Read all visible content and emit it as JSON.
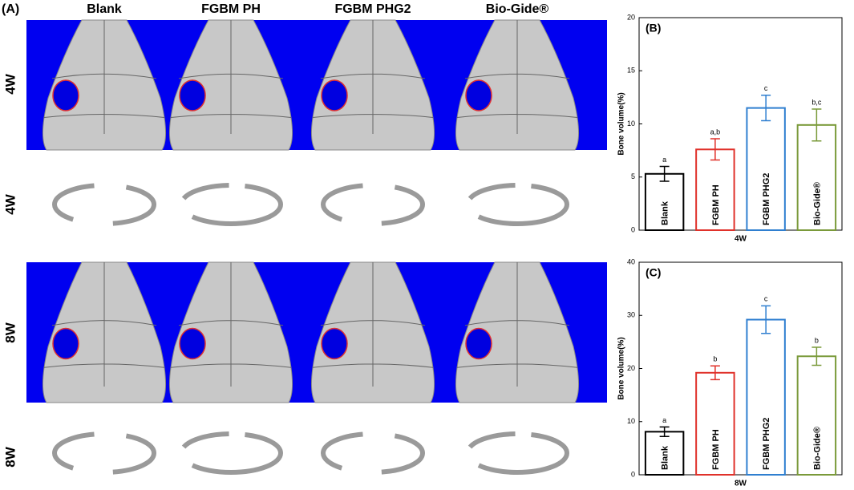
{
  "panel_a": {
    "label": "(A)",
    "columns": [
      "Blank",
      "FGBM PH",
      "FGBM PHG2",
      "Bio-Gide®"
    ],
    "rows": [
      "4W",
      "4W",
      "8W",
      "8W"
    ]
  },
  "chart_data": [
    {
      "type": "bar",
      "panel": "(B)",
      "x_label": "4W",
      "y_label": "Bone volume(%)",
      "categories": [
        "Blank",
        "FGBM PH",
        "FGBM PHG2",
        "Bio-Gide®"
      ],
      "values": [
        5.3,
        7.6,
        11.5,
        9.9
      ],
      "errors": [
        0.7,
        1.0,
        1.2,
        1.5
      ],
      "annotations": [
        "a",
        "a,b",
        "c",
        "b,c"
      ],
      "colors": [
        "#000000",
        "#e0312a",
        "#2f7fd0",
        "#7a9a3a"
      ],
      "ylim": [
        0,
        20
      ],
      "yticks": [
        0,
        5,
        10,
        15,
        20
      ]
    },
    {
      "type": "bar",
      "panel": "(C)",
      "x_label": "8W",
      "y_label": "Bone volume(%)",
      "categories": [
        "Blank",
        "FGBM PH",
        "FGBM PHG2",
        "Bio-Gide®"
      ],
      "values": [
        8.1,
        19.2,
        29.2,
        22.3
      ],
      "errors": [
        0.9,
        1.3,
        2.6,
        1.7
      ],
      "annotations": [
        "a",
        "b",
        "c",
        "b"
      ],
      "colors": [
        "#000000",
        "#e0312a",
        "#2f7fd0",
        "#7a9a3a"
      ],
      "ylim": [
        0,
        40
      ],
      "yticks": [
        0,
        10,
        20,
        30,
        40
      ]
    }
  ]
}
